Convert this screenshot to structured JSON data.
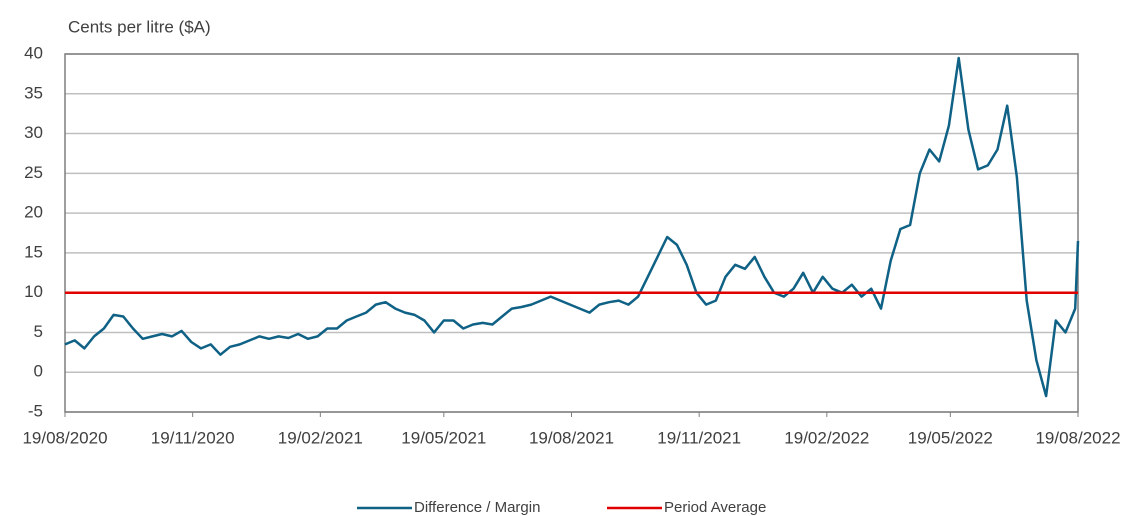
{
  "chart_data": {
    "type": "line",
    "y_label": "Cents per litre ($A)",
    "ylim": [
      -5,
      40
    ],
    "yticks": [
      -5,
      0,
      5,
      10,
      15,
      20,
      25,
      30,
      35,
      40
    ],
    "xlim": [
      "19/08/2020",
      "19/08/2022"
    ],
    "xticks": [
      "19/08/2020",
      "19/11/2020",
      "19/02/2021",
      "19/05/2021",
      "19/08/2021",
      "19/11/2021",
      "19/02/2022",
      "19/05/2022",
      "19/08/2022"
    ],
    "grid": true,
    "legend": "bottom",
    "series": [
      {
        "name": "Difference / Margin",
        "color": "#0f6185",
        "x": [
          "19/08/2020",
          "26/08/2020",
          "02/09/2020",
          "09/09/2020",
          "16/09/2020",
          "23/09/2020",
          "30/09/2020",
          "07/10/2020",
          "14/10/2020",
          "21/10/2020",
          "28/10/2020",
          "04/11/2020",
          "11/11/2020",
          "18/11/2020",
          "25/11/2020",
          "02/12/2020",
          "09/12/2020",
          "16/12/2020",
          "23/12/2020",
          "30/12/2020",
          "06/01/2021",
          "13/01/2021",
          "20/01/2021",
          "27/01/2021",
          "03/02/2021",
          "10/02/2021",
          "17/02/2021",
          "24/02/2021",
          "03/03/2021",
          "10/03/2021",
          "17/03/2021",
          "24/03/2021",
          "31/03/2021",
          "07/04/2021",
          "14/04/2021",
          "21/04/2021",
          "28/04/2021",
          "05/05/2021",
          "12/05/2021",
          "19/05/2021",
          "26/05/2021",
          "02/06/2021",
          "09/06/2021",
          "16/06/2021",
          "23/06/2021",
          "30/06/2021",
          "07/07/2021",
          "14/07/2021",
          "21/07/2021",
          "28/07/2021",
          "04/08/2021",
          "11/08/2021",
          "18/08/2021",
          "25/08/2021",
          "01/09/2021",
          "08/09/2021",
          "15/09/2021",
          "22/09/2021",
          "29/09/2021",
          "06/10/2021",
          "13/10/2021",
          "20/10/2021",
          "27/10/2021",
          "03/11/2021",
          "10/11/2021",
          "17/11/2021",
          "24/11/2021",
          "01/12/2021",
          "08/12/2021",
          "15/12/2021",
          "22/12/2021",
          "29/12/2021",
          "05/01/2022",
          "12/01/2022",
          "19/01/2022",
          "26/01/2022",
          "02/02/2022",
          "09/02/2022",
          "16/02/2022",
          "23/02/2022",
          "02/03/2022",
          "09/03/2022",
          "16/03/2022",
          "23/03/2022",
          "30/03/2022",
          "06/04/2022",
          "13/04/2022",
          "20/04/2022",
          "27/04/2022",
          "04/05/2022",
          "11/05/2022",
          "18/05/2022",
          "25/05/2022",
          "01/06/2022",
          "08/06/2022",
          "15/06/2022",
          "22/06/2022",
          "29/06/2022",
          "06/07/2022",
          "13/07/2022",
          "20/07/2022",
          "27/07/2022",
          "03/08/2022",
          "10/08/2022",
          "17/08/2022",
          "19/08/2022"
        ],
        "values": [
          3.5,
          4,
          3,
          4.5,
          5.5,
          7.2,
          7,
          5.5,
          4.2,
          4.5,
          4.8,
          4.5,
          5.2,
          3.8,
          3,
          3.5,
          2.2,
          3.2,
          3.5,
          4,
          4.5,
          4.2,
          4.5,
          4.3,
          4.8,
          4.2,
          4.5,
          5.5,
          5.5,
          6.5,
          7,
          7.5,
          8.5,
          8.8,
          8,
          7.5,
          7.2,
          6.5,
          5,
          6.5,
          6.5,
          5.5,
          6,
          6.2,
          6,
          7,
          8,
          8.2,
          8.5,
          9,
          9.5,
          9,
          8.5,
          8,
          7.5,
          8.5,
          8.8,
          9,
          8.5,
          9.5,
          12,
          14.5,
          17,
          16,
          13.5,
          10,
          8.5,
          9,
          12,
          13.5,
          13,
          14.5,
          12,
          10,
          9.5,
          10.5,
          12.5,
          10,
          12,
          10.5,
          10,
          11,
          9.5,
          10.5,
          8,
          14,
          18,
          18.5,
          25,
          28,
          26.5,
          31,
          39.5,
          30.5,
          25.5,
          26,
          28,
          33.5,
          24.5,
          9,
          1.5,
          -3,
          6.5,
          5,
          8,
          16.5
        ]
      },
      {
        "name": "Period Average",
        "color": "#e00000",
        "x": [
          "19/08/2020",
          "19/08/2022"
        ],
        "values": [
          10,
          10
        ]
      }
    ]
  }
}
